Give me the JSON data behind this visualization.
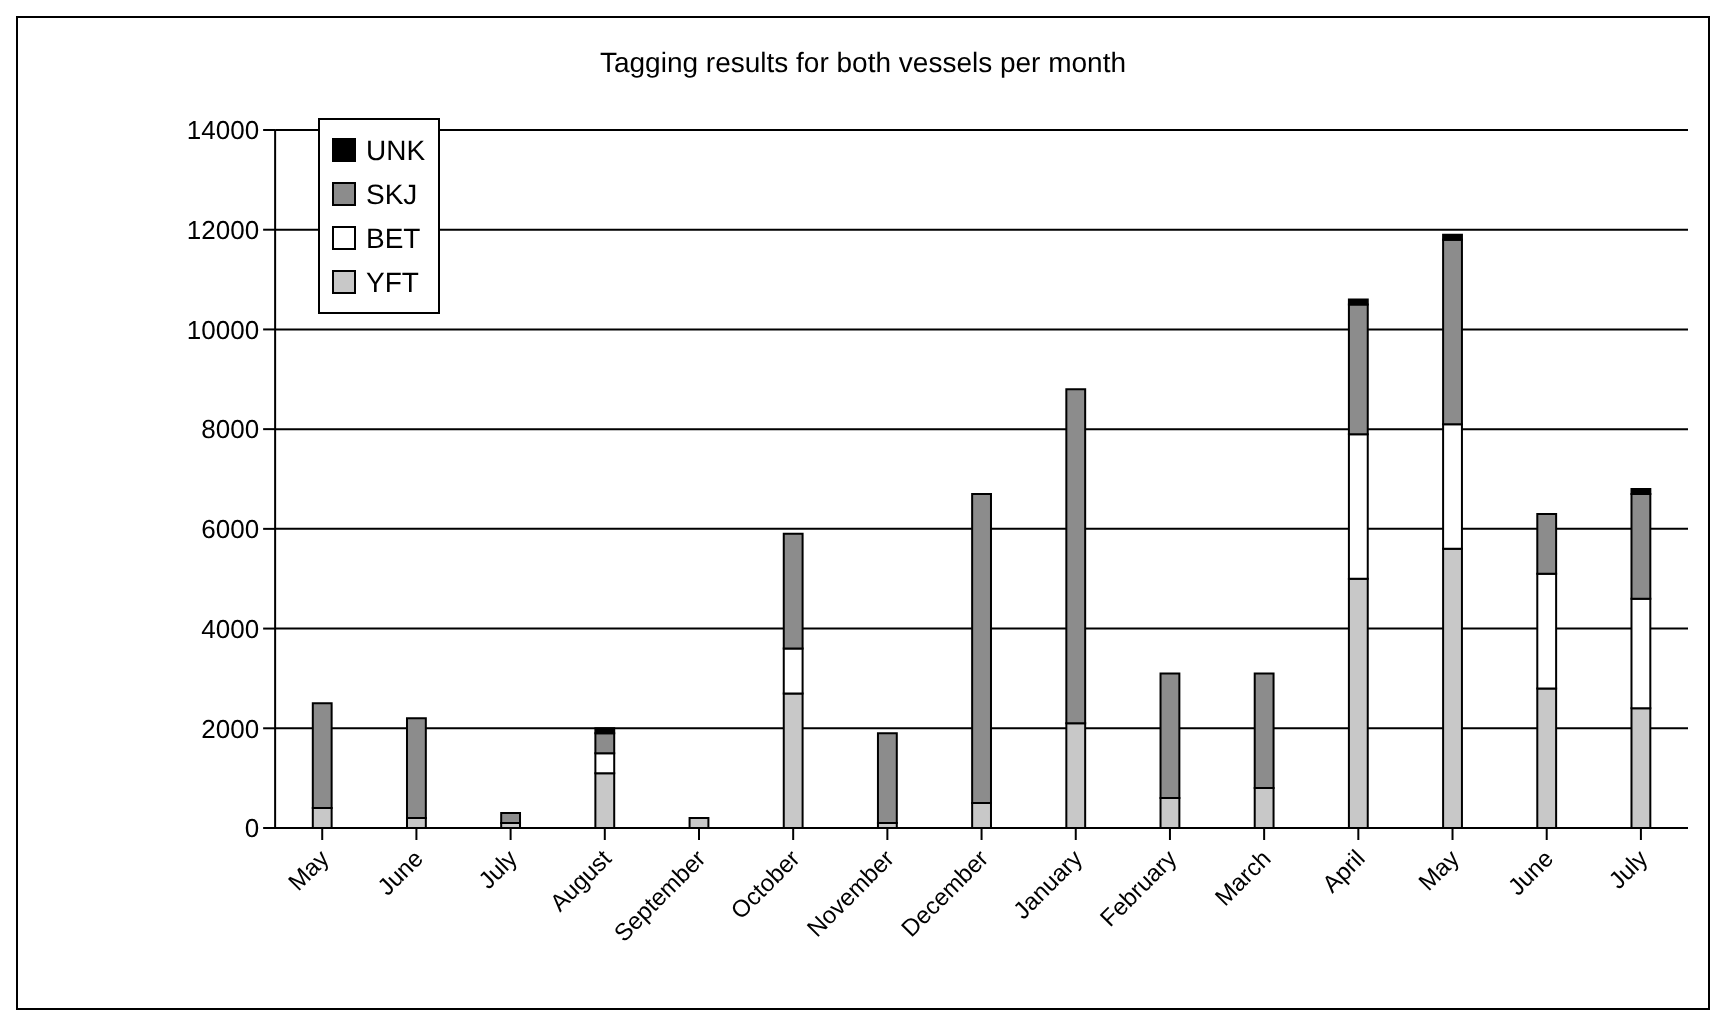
{
  "chart_data": {
    "type": "bar",
    "title": "Tagging results for both vessels per month",
    "categories": [
      "May",
      "June",
      "July",
      "August",
      "September",
      "October",
      "November",
      "December",
      "January",
      "February",
      "March",
      "April",
      "May",
      "June",
      "July"
    ],
    "stacked": true,
    "series": [
      {
        "name": "YFT",
        "color": "#c8c8c8",
        "values": [
          400,
          200,
          100,
          1100,
          200,
          2700,
          100,
          500,
          2100,
          600,
          800,
          5000,
          5600,
          2800,
          2400
        ]
      },
      {
        "name": "BET",
        "color": "#ffffff",
        "values": [
          0,
          null,
          null,
          400,
          0,
          900,
          0,
          null,
          0,
          0,
          0,
          2900,
          2500,
          2300,
          2200
        ]
      },
      {
        "name": "SKJ",
        "color": "#8c8c8c",
        "values": [
          2100,
          2000,
          200,
          400,
          0,
          2300,
          1800,
          6200,
          6700,
          2500,
          2300,
          2600,
          3700,
          1200,
          2100
        ]
      },
      {
        "name": "UNK",
        "color": "#000000",
        "values": [
          0,
          0,
          0,
          100,
          0,
          0,
          0,
          0,
          0,
          0,
          0,
          100,
          100,
          0,
          100
        ]
      }
    ],
    "ylim": [
      0,
      14000
    ],
    "yticks": [
      0,
      2000,
      4000,
      6000,
      8000,
      10000,
      12000,
      14000
    ],
    "grid": "y",
    "legend": "top left"
  }
}
